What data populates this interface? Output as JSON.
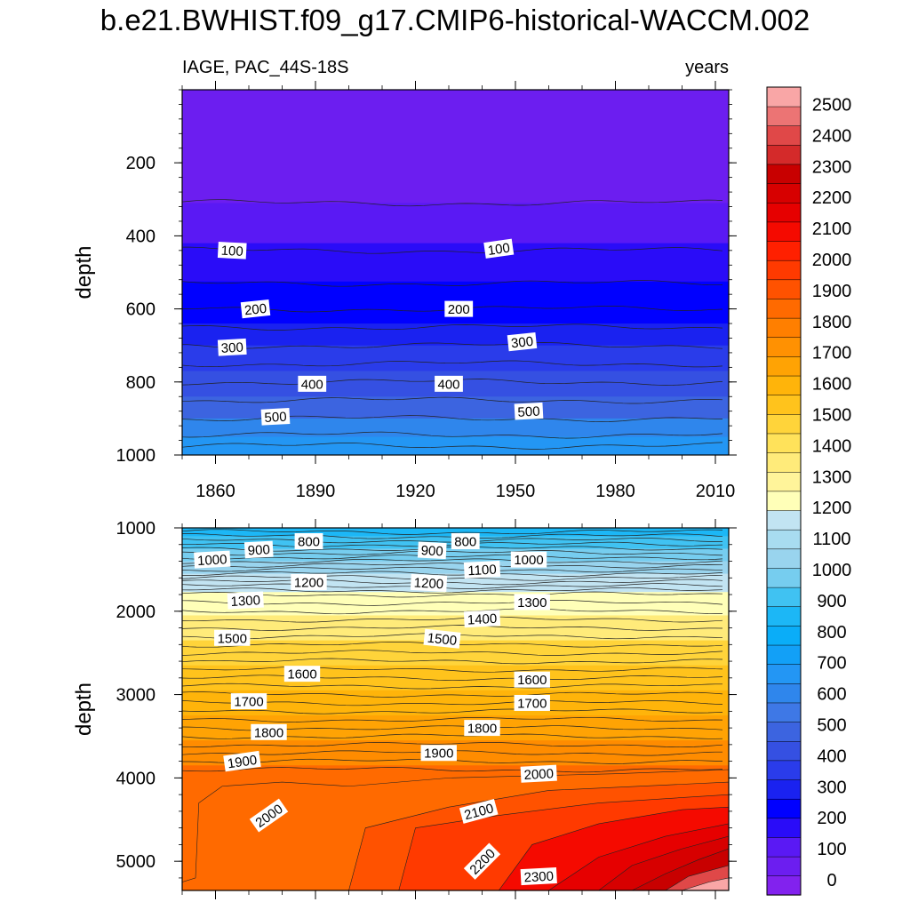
{
  "title": "b.e21.BWHIST.f09_g17.CMIP6-historical-WACCM.002",
  "chart_data": {
    "type": "heatmap",
    "subtitle_left": "IAGE, PAC_44S-18S",
    "subtitle_right": "years",
    "xlabel": "",
    "ylabel": "depth",
    "x_range": [
      1850,
      2014
    ],
    "x_ticks": [
      1860,
      1890,
      1920,
      1950,
      1980,
      2010
    ],
    "colorbar": {
      "levels": [
        0,
        100,
        200,
        300,
        400,
        500,
        600,
        700,
        800,
        900,
        1000,
        1100,
        1200,
        1300,
        1400,
        1500,
        1600,
        1700,
        1800,
        1900,
        2000,
        2100,
        2200,
        2300,
        2400,
        2500
      ],
      "tick_labels": [
        "0",
        "100",
        "200",
        "300",
        "400",
        "500",
        "600",
        "700",
        "800",
        "900",
        "1000",
        "1100",
        "1200",
        "1300",
        "1400",
        "1500",
        "1600",
        "1700",
        "1800",
        "1900",
        "2000",
        "2100",
        "2200",
        "2300",
        "2400",
        "2500"
      ],
      "colors": [
        "#8222ee",
        "#6c1ef0",
        "#5a19f4",
        "#2a0cf8",
        "#0000ff",
        "#1a22f0",
        "#2a3cea",
        "#3550e2",
        "#3c64e0",
        "#3e78e6",
        "#2f86ec",
        "#2396f4",
        "#12a0f7",
        "#0aadf8",
        "#1cb7f6",
        "#40c2f2",
        "#76cdef",
        "#99d4ee",
        "#a8dcf0",
        "#c2e4f2",
        "#ffffb8",
        "#fff49a",
        "#ffeb7a",
        "#ffe25a",
        "#ffd43a",
        "#ffc31c",
        "#ffb40a",
        "#ffa304",
        "#ff9102",
        "#ff7f00",
        "#ff6a00",
        "#ff5200",
        "#ff3a00",
        "#ff2000",
        "#f50a00",
        "#e60000",
        "#d70000",
        "#c80000",
        "#d42a2a",
        "#e04848",
        "#ec7474",
        "#f9a6a6"
      ]
    },
    "panels": [
      {
        "name": "upper",
        "ylim": [
          0,
          1000
        ],
        "y_ticks": [
          200,
          400,
          600,
          800,
          1000
        ],
        "bands": [
          {
            "ytop": 0,
            "ybot": 310,
            "color": "#6c1ef0"
          },
          {
            "ytop": 310,
            "ybot": 420,
            "color": "#5a19f4"
          },
          {
            "ytop": 420,
            "ybot": 525,
            "color": "#2a0cf8"
          },
          {
            "ytop": 525,
            "ybot": 640,
            "color": "#0000ff"
          },
          {
            "ytop": 640,
            "ybot": 700,
            "color": "#1a22f0"
          },
          {
            "ytop": 700,
            "ybot": 770,
            "color": "#2a3cea"
          },
          {
            "ytop": 770,
            "ybot": 840,
            "color": "#3550e2"
          },
          {
            "ytop": 840,
            "ybot": 900,
            "color": "#3c64e0"
          },
          {
            "ytop": 900,
            "ybot": 950,
            "color": "#2f86ec"
          },
          {
            "ytop": 950,
            "ybot": 1000,
            "color": "#2396f4"
          }
        ],
        "contour_lines": [
          {
            "level": 0,
            "y": 310
          },
          {
            "level": 100,
            "y": 440
          },
          {
            "level": 150,
            "y": 530
          },
          {
            "level": 200,
            "y": 600
          },
          {
            "level": 250,
            "y": 650
          },
          {
            "level": 300,
            "y": 700
          },
          {
            "level": 350,
            "y": 750
          },
          {
            "level": 400,
            "y": 800
          },
          {
            "level": 450,
            "y": 850
          },
          {
            "level": 500,
            "y": 900
          },
          {
            "level": 550,
            "y": 945
          },
          {
            "level": 600,
            "y": 975
          }
        ],
        "contour_labels": [
          {
            "text": "100",
            "x": 1865,
            "y": 440,
            "angle": 3
          },
          {
            "text": "100",
            "x": 1945,
            "y": 435,
            "angle": -8
          },
          {
            "text": "200",
            "x": 1872,
            "y": 600,
            "angle": -6
          },
          {
            "text": "200",
            "x": 1933,
            "y": 600,
            "angle": 0
          },
          {
            "text": "300",
            "x": 1865,
            "y": 705,
            "angle": -3
          },
          {
            "text": "300",
            "x": 1952,
            "y": 690,
            "angle": -6
          },
          {
            "text": "400",
            "x": 1889,
            "y": 805,
            "angle": 0
          },
          {
            "text": "400",
            "x": 1930,
            "y": 805,
            "angle": 0
          },
          {
            "text": "500",
            "x": 1878,
            "y": 895,
            "angle": -3
          },
          {
            "text": "500",
            "x": 1954,
            "y": 880,
            "angle": -3
          }
        ]
      },
      {
        "name": "lower",
        "ylim": [
          1000,
          5350
        ],
        "y_ticks": [
          1000,
          2000,
          3000,
          4000,
          5000
        ],
        "bands": [
          {
            "ytop": 1000,
            "ybot": 1100,
            "color": "#1cb7f6"
          },
          {
            "ytop": 1100,
            "ybot": 1250,
            "color": "#40c2f2"
          },
          {
            "ytop": 1250,
            "ybot": 1400,
            "color": "#76cdef"
          },
          {
            "ytop": 1400,
            "ybot": 1550,
            "color": "#99d4ee"
          },
          {
            "ytop": 1550,
            "ybot": 1770,
            "color": "#c2e4f2"
          },
          {
            "ytop": 1770,
            "ybot": 2050,
            "color": "#ffffb8"
          },
          {
            "ytop": 2050,
            "ybot": 2350,
            "color": "#ffeb7a"
          },
          {
            "ytop": 2350,
            "ybot": 2650,
            "color": "#ffd43a"
          },
          {
            "ytop": 2650,
            "ybot": 2950,
            "color": "#ffc31c"
          },
          {
            "ytop": 2950,
            "ybot": 3250,
            "color": "#ffb40a"
          },
          {
            "ytop": 3250,
            "ybot": 3550,
            "color": "#ffa304"
          },
          {
            "ytop": 3550,
            "ybot": 3850,
            "color": "#ff8c00"
          },
          {
            "ytop": 3850,
            "ybot": 5350,
            "color": "#ff6a00"
          }
        ],
        "contour_labels": [
          {
            "text": "800",
            "x": 1888,
            "y": 1160,
            "angle": 0
          },
          {
            "text": "800",
            "x": 1935,
            "y": 1160,
            "angle": 0
          },
          {
            "text": "900",
            "x": 1873,
            "y": 1260,
            "angle": -3
          },
          {
            "text": "900",
            "x": 1925,
            "y": 1270,
            "angle": 3
          },
          {
            "text": "1000",
            "x": 1859,
            "y": 1380,
            "angle": -3
          },
          {
            "text": "1000",
            "x": 1954,
            "y": 1380,
            "angle": 0
          },
          {
            "text": "1100",
            "x": 1940,
            "y": 1500,
            "angle": -3
          },
          {
            "text": "1200",
            "x": 1888,
            "y": 1650,
            "angle": 0
          },
          {
            "text": "1200",
            "x": 1924,
            "y": 1660,
            "angle": 3
          },
          {
            "text": "1300",
            "x": 1869,
            "y": 1870,
            "angle": -3
          },
          {
            "text": "1300",
            "x": 1955,
            "y": 1890,
            "angle": 0
          },
          {
            "text": "1400",
            "x": 1940,
            "y": 2090,
            "angle": -3
          },
          {
            "text": "1500",
            "x": 1865,
            "y": 2320,
            "angle": 0
          },
          {
            "text": "1500",
            "x": 1928,
            "y": 2330,
            "angle": 6
          },
          {
            "text": "1600",
            "x": 1886,
            "y": 2750,
            "angle": 0
          },
          {
            "text": "1600",
            "x": 1955,
            "y": 2820,
            "angle": 0
          },
          {
            "text": "1700",
            "x": 1870,
            "y": 3080,
            "angle": 0
          },
          {
            "text": "1700",
            "x": 1955,
            "y": 3100,
            "angle": 0
          },
          {
            "text": "1800",
            "x": 1876,
            "y": 3450,
            "angle": 0
          },
          {
            "text": "1800",
            "x": 1940,
            "y": 3400,
            "angle": 0
          },
          {
            "text": "1900",
            "x": 1868,
            "y": 3800,
            "angle": -8
          },
          {
            "text": "1900",
            "x": 1927,
            "y": 3700,
            "angle": 0
          },
          {
            "text": "2000",
            "x": 1876,
            "y": 4450,
            "angle": -35
          },
          {
            "text": "2000",
            "x": 1957,
            "y": 3950,
            "angle": -3
          },
          {
            "text": "2100",
            "x": 1939,
            "y": 4400,
            "angle": -15
          },
          {
            "text": "2200",
            "x": 1940,
            "y": 5000,
            "angle": -45
          },
          {
            "text": "2300",
            "x": 1957,
            "y": 5180,
            "angle": -3
          }
        ]
      }
    ]
  }
}
